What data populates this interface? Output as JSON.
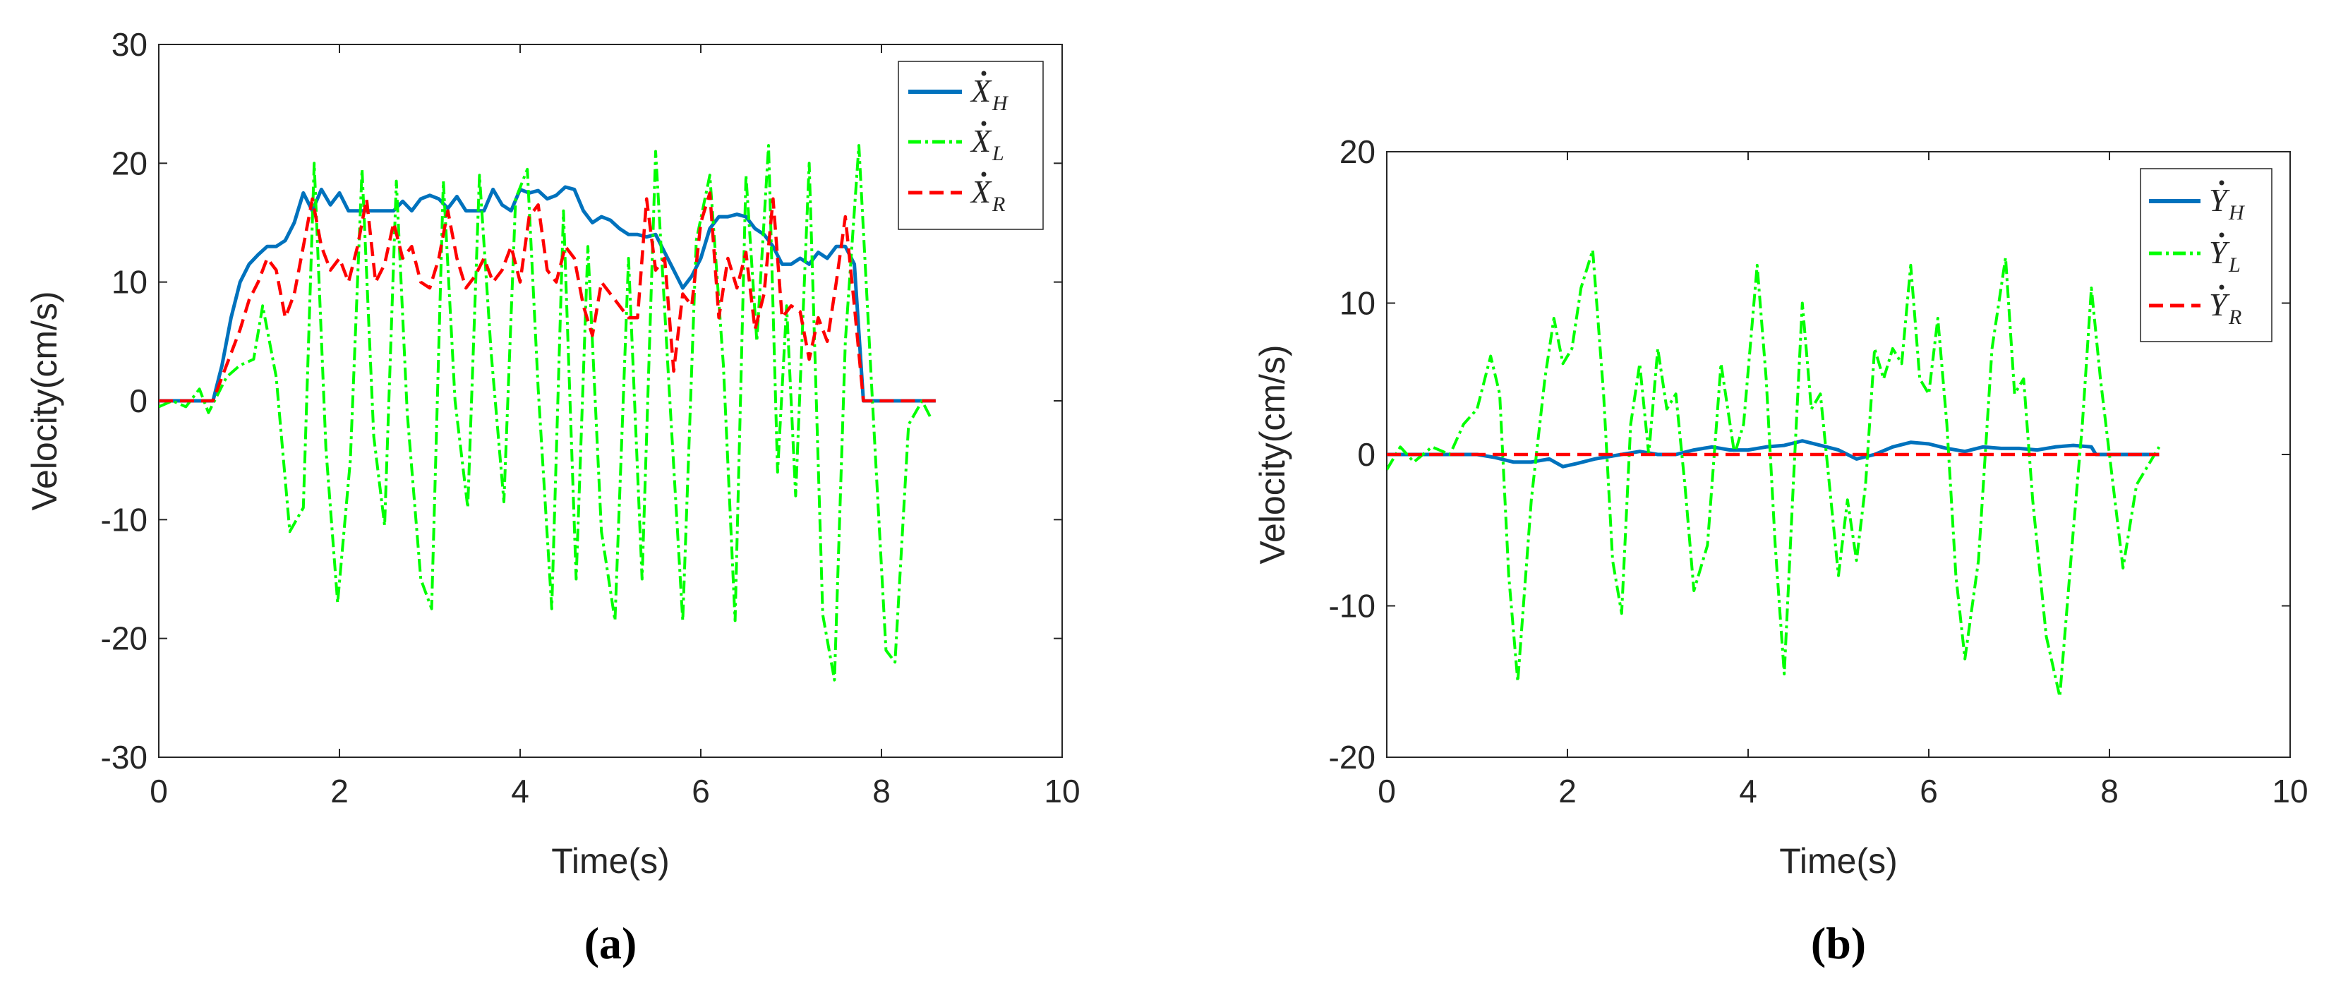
{
  "chart_data": [
    {
      "type": "line",
      "panel_label": "(a)",
      "xlabel": "Time(s)",
      "ylabel": "Velocity(cm/s)",
      "xlim": [
        0,
        10
      ],
      "ylim": [
        -30,
        30
      ],
      "xticks": [
        0,
        2,
        4,
        6,
        8,
        10
      ],
      "yticks": [
        -30,
        -20,
        -10,
        0,
        10,
        20,
        30
      ],
      "grid": false,
      "legend_position": "top-right",
      "series": [
        {
          "name": "X_H",
          "legend_label": {
            "base": "X",
            "sub": "H"
          },
          "style": "solid",
          "color": "#0072BD",
          "x": [
            0,
            0.6,
            0.7,
            0.8,
            0.9,
            1.0,
            1.1,
            1.2,
            1.3,
            1.4,
            1.5,
            1.6,
            1.7,
            1.8,
            1.9,
            2.0,
            2.1,
            2.2,
            2.3,
            2.6,
            2.7,
            2.8,
            2.9,
            3.0,
            3.1,
            3.2,
            3.3,
            3.4,
            3.5,
            3.6,
            3.7,
            3.8,
            3.9,
            4.0,
            4.1,
            4.2,
            4.3,
            4.4,
            4.5,
            4.6,
            4.7,
            4.8,
            4.9,
            5.0,
            5.1,
            5.2,
            5.3,
            5.4,
            5.5,
            5.6,
            5.7,
            5.8,
            5.9,
            6.0,
            6.1,
            6.2,
            6.3,
            6.4,
            6.5,
            6.6,
            6.7,
            6.8,
            6.9,
            7.0,
            7.1,
            7.2,
            7.3,
            7.4,
            7.5,
            7.6,
            7.7,
            7.8,
            8.6
          ],
          "y": [
            0,
            0,
            3,
            7,
            10,
            11.5,
            12.3,
            13,
            13,
            13.5,
            15,
            17.5,
            16,
            17.8,
            16.5,
            17.5,
            16,
            16,
            16,
            16,
            16.8,
            16,
            17,
            17.3,
            17,
            16.2,
            17.2,
            16,
            16,
            16,
            17.8,
            16.5,
            16,
            17.8,
            17.5,
            17.7,
            17,
            17.3,
            18,
            17.8,
            16,
            15,
            15.5,
            15.2,
            14.5,
            14,
            14,
            13.8,
            14,
            12.5,
            11,
            9.5,
            10.5,
            12,
            14.5,
            15.5,
            15.5,
            15.7,
            15.5,
            14.5,
            14,
            13,
            11.5,
            11.5,
            12,
            11.5,
            12.5,
            12,
            13,
            13,
            11.5,
            0,
            0
          ]
        },
        {
          "name": "X_L",
          "legend_label": {
            "base": "X",
            "sub": "L"
          },
          "style": "dashdot",
          "color": "#00FF00",
          "x": [
            0,
            0.15,
            0.3,
            0.45,
            0.55,
            0.65,
            0.75,
            0.9,
            1.05,
            1.15,
            1.3,
            1.45,
            1.6,
            1.72,
            1.85,
            1.98,
            2.12,
            2.25,
            2.38,
            2.5,
            2.63,
            2.75,
            2.9,
            3.02,
            3.15,
            3.28,
            3.42,
            3.55,
            3.68,
            3.82,
            3.95,
            4.08,
            4.2,
            4.35,
            4.48,
            4.62,
            4.75,
            4.9,
            5.05,
            5.2,
            5.35,
            5.5,
            5.65,
            5.8,
            5.95,
            6.1,
            6.25,
            6.38,
            6.5,
            6.62,
            6.75,
            6.85,
            6.95,
            7.05,
            7.2,
            7.35,
            7.48,
            7.6,
            7.75,
            7.9,
            8.05,
            8.15,
            8.3,
            8.45,
            8.55
          ],
          "y": [
            -0.5,
            0,
            -0.5,
            1,
            -1,
            0.5,
            2,
            3,
            3.5,
            8,
            2,
            -11,
            -9,
            20,
            -4,
            -17,
            -5,
            19.5,
            -3,
            -10.5,
            18.5,
            -1,
            -15,
            -17.5,
            18.5,
            0,
            -9,
            19,
            4,
            -8.5,
            17,
            19.5,
            1,
            -17.5,
            16,
            -15,
            13,
            -11,
            -18.5,
            12,
            -15,
            21,
            1,
            -18.5,
            13.5,
            19,
            3,
            -18.5,
            19,
            5,
            21.5,
            -6,
            8,
            -8,
            20,
            -18,
            -23.5,
            5,
            21.5,
            0,
            -21,
            -22,
            -2,
            0,
            -1.5
          ]
        },
        {
          "name": "X_R",
          "legend_label": {
            "base": "X",
            "sub": "R"
          },
          "style": "dashed",
          "color": "#FF0000",
          "x": [
            0,
            0.6,
            0.75,
            0.9,
            1.0,
            1.1,
            1.2,
            1.3,
            1.4,
            1.5,
            1.6,
            1.7,
            1.8,
            1.9,
            2.0,
            2.1,
            2.2,
            2.3,
            2.4,
            2.5,
            2.6,
            2.7,
            2.8,
            2.9,
            3.0,
            3.1,
            3.2,
            3.3,
            3.4,
            3.5,
            3.6,
            3.7,
            3.8,
            3.9,
            4.0,
            4.1,
            4.2,
            4.3,
            4.4,
            4.5,
            4.6,
            4.7,
            4.8,
            4.9,
            5.0,
            5.1,
            5.2,
            5.3,
            5.4,
            5.5,
            5.6,
            5.7,
            5.8,
            5.9,
            6.0,
            6.1,
            6.2,
            6.3,
            6.4,
            6.5,
            6.6,
            6.7,
            6.8,
            6.9,
            7.0,
            7.1,
            7.2,
            7.3,
            7.4,
            7.5,
            7.6,
            7.7,
            7.8,
            8.6
          ],
          "y": [
            0,
            0,
            3,
            6,
            8.5,
            10,
            12,
            11,
            7,
            9,
            13,
            17,
            13,
            11,
            12,
            10,
            13,
            17,
            10,
            11.5,
            15,
            12,
            13,
            10,
            9.5,
            12,
            16,
            12,
            9.5,
            10.5,
            12,
            10,
            11,
            13,
            10,
            15.5,
            16.5,
            11,
            10,
            13,
            12,
            8,
            5.5,
            10,
            9,
            8,
            7,
            7,
            17,
            11,
            12,
            2.5,
            9,
            8,
            15,
            17.5,
            7,
            12,
            9.5,
            12.5,
            6,
            9,
            17,
            7,
            8,
            7.5,
            3.5,
            7,
            5,
            10,
            15.5,
            8,
            0,
            0
          ]
        }
      ]
    },
    {
      "type": "line",
      "panel_label": "(b)",
      "xlabel": "Time(s)",
      "ylabel": "Velocity(cm/s)",
      "xlim": [
        0,
        10
      ],
      "ylim": [
        -20,
        20
      ],
      "xticks": [
        0,
        2,
        4,
        6,
        8,
        10
      ],
      "yticks": [
        -20,
        -10,
        0,
        10,
        20
      ],
      "grid": false,
      "legend_position": "top-right",
      "series": [
        {
          "name": "Y_H",
          "legend_label": {
            "base": "Y",
            "sub": "H"
          },
          "style": "solid",
          "color": "#0072BD",
          "x": [
            0,
            0.6,
            0.8,
            1.0,
            1.2,
            1.4,
            1.6,
            1.8,
            1.95,
            2.1,
            2.3,
            2.5,
            2.8,
            3.0,
            3.2,
            3.4,
            3.6,
            3.8,
            4.0,
            4.2,
            4.4,
            4.6,
            4.8,
            5.0,
            5.2,
            5.4,
            5.6,
            5.8,
            6.0,
            6.2,
            6.4,
            6.6,
            6.8,
            7.0,
            7.2,
            7.4,
            7.6,
            7.8,
            7.85,
            8.55
          ],
          "y": [
            0,
            0,
            0,
            0,
            -0.2,
            -0.5,
            -0.5,
            -0.3,
            -0.8,
            -0.6,
            -0.3,
            -0.1,
            0.2,
            0,
            0,
            0.3,
            0.5,
            0.3,
            0.3,
            0.5,
            0.6,
            0.9,
            0.6,
            0.3,
            -0.3,
            0,
            0.5,
            0.8,
            0.7,
            0.4,
            0.2,
            0.5,
            0.4,
            0.4,
            0.3,
            0.5,
            0.6,
            0.5,
            0,
            0
          ]
        },
        {
          "name": "Y_L",
          "legend_label": {
            "base": "Y",
            "sub": "L"
          },
          "style": "dashdot",
          "color": "#00FF00",
          "x": [
            0,
            0.15,
            0.3,
            0.5,
            0.7,
            0.85,
            1.0,
            1.15,
            1.25,
            1.35,
            1.45,
            1.6,
            1.75,
            1.85,
            1.95,
            2.05,
            2.15,
            2.28,
            2.4,
            2.5,
            2.6,
            2.7,
            2.8,
            2.9,
            3.0,
            3.1,
            3.2,
            3.3,
            3.4,
            3.55,
            3.7,
            3.85,
            3.95,
            4.1,
            4.2,
            4.3,
            4.4,
            4.5,
            4.6,
            4.7,
            4.8,
            4.9,
            5.0,
            5.1,
            5.2,
            5.3,
            5.4,
            5.5,
            5.6,
            5.7,
            5.8,
            5.9,
            6.0,
            6.1,
            6.2,
            6.3,
            6.4,
            6.55,
            6.7,
            6.85,
            6.95,
            7.05,
            7.15,
            7.3,
            7.45,
            7.6,
            7.7,
            7.8,
            7.9,
            8.0,
            8.15,
            8.3,
            8.45,
            8.55
          ],
          "y": [
            -1,
            0.5,
            -0.5,
            0.5,
            0,
            2,
            3,
            6.5,
            4,
            -8,
            -15,
            -3,
            5,
            9,
            6,
            7,
            11,
            13.5,
            4,
            -7,
            -10.5,
            2,
            6,
            0,
            7,
            3,
            4,
            -2,
            -9,
            -6,
            6,
            0,
            2,
            12.5,
            5,
            -6,
            -14.5,
            -2,
            10,
            3,
            4,
            -2,
            -8,
            -3,
            -7,
            -2,
            7,
            5,
            7,
            6,
            12.5,
            5,
            4,
            9,
            2,
            -8,
            -13.5,
            -7,
            7,
            13,
            4,
            5,
            -3,
            -12,
            -16,
            -5,
            2,
            11,
            5,
            0,
            -7.5,
            -2,
            -0.5,
            0.5
          ]
        },
        {
          "name": "Y_R",
          "legend_label": {
            "base": "Y",
            "sub": "R"
          },
          "style": "dashed",
          "color": "#FF0000",
          "x": [
            0,
            8.55
          ],
          "y": [
            0,
            0
          ]
        }
      ]
    }
  ]
}
